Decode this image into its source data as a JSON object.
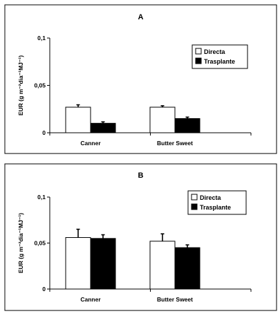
{
  "chart_data": [
    {
      "type": "bar",
      "panel_label": "A",
      "ylabel": "EUR (g m⁻²dia⁻¹MJ⁻¹)",
      "ylim": [
        0,
        0.1
      ],
      "yticks": [
        0,
        0.05,
        0.1
      ],
      "ytick_labels": [
        "0",
        "0,05",
        "0,1"
      ],
      "categories": [
        "Canner",
        "Butter Sweet"
      ],
      "legend_position": "top-right",
      "series": [
        {
          "name": "Directa",
          "color": "#ffffff",
          "values": [
            0.027,
            0.027
          ],
          "errors": [
            0.0025,
            0.0015
          ]
        },
        {
          "name": "Trasplante",
          "color": "#000000",
          "values": [
            0.01,
            0.015
          ],
          "errors": [
            0.0015,
            0.0015
          ]
        }
      ]
    },
    {
      "type": "bar",
      "panel_label": "B",
      "ylabel": "EUR (g m⁻²dia⁻¹MJ⁻¹)",
      "ylim": [
        0,
        0.1
      ],
      "yticks": [
        0,
        0.05,
        0.1
      ],
      "ytick_labels": [
        "0",
        "0,05",
        "0,1"
      ],
      "categories": [
        "Canner",
        "Butter Sweet"
      ],
      "legend_position": "top-right",
      "series": [
        {
          "name": "Directa",
          "color": "#ffffff",
          "values": [
            0.056,
            0.052
          ],
          "errors": [
            0.009,
            0.008
          ]
        },
        {
          "name": "Trasplante",
          "color": "#000000",
          "values": [
            0.055,
            0.045
          ],
          "errors": [
            0.004,
            0.003
          ]
        }
      ]
    }
  ]
}
